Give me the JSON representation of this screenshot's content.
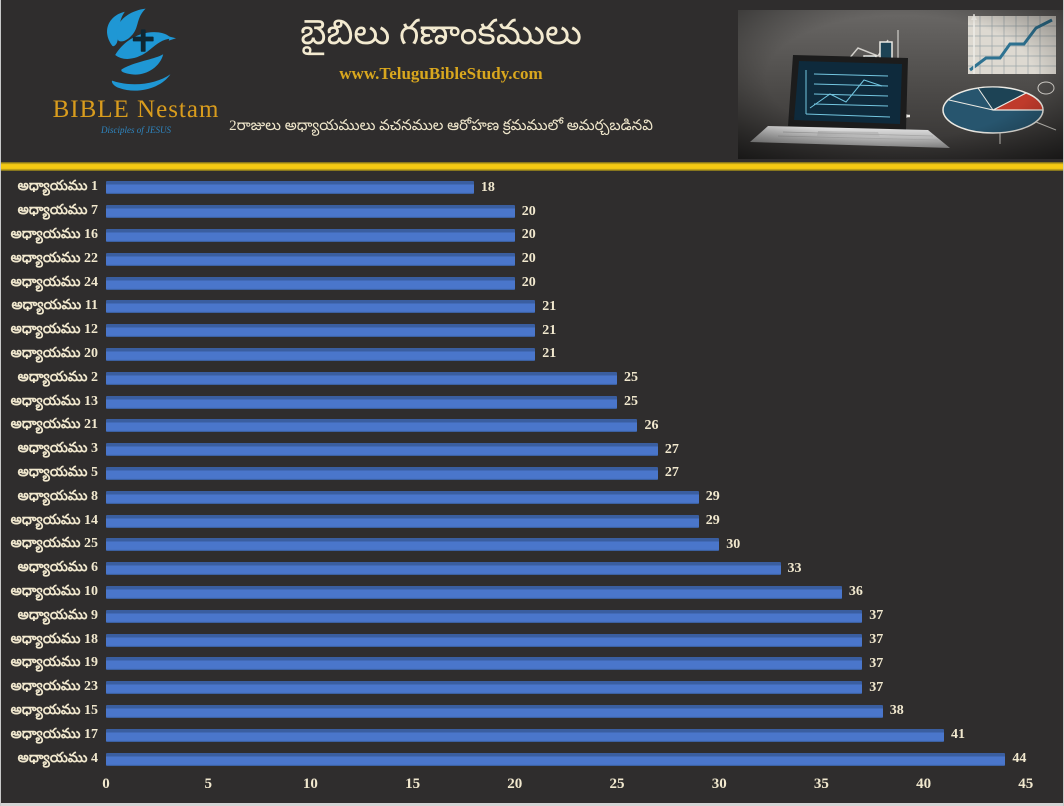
{
  "window": {
    "background": "#2f2d2d",
    "border_color": "#c9c9c9"
  },
  "header": {
    "logo": {
      "name": "BIBLE Nestam",
      "tagline": "Disciples of JESUS",
      "name_color": "#d99c1d",
      "dove_color": "#1f97d4"
    },
    "title": "బైబిలు గణాంకములు",
    "website": "www.TeluguBibleStudy.com",
    "subtitle": "2రాజులు అధ్యాయములు వచనముల ఆరోహణ క్రమములో అమర్చబడినవి",
    "divider_color": "#f4c913"
  },
  "chart_data": {
    "type": "bar",
    "orientation": "horizontal",
    "title": "",
    "xlabel": "",
    "ylabel": "",
    "categories": [
      "అధ్యాయము 1",
      "అధ్యాయము 7",
      "అధ్యాయము 16",
      "అధ్యాయము 22",
      "అధ్యాయము 24",
      "అధ్యాయము 11",
      "అధ్యాయము 12",
      "అధ్యాయము 20",
      "అధ్యాయము 2",
      "అధ్యాయము 13",
      "అధ్యాయము 21",
      "అధ్యాయము 3",
      "అధ్యాయము 5",
      "అధ్యాయము 8",
      "అధ్యాయము 14",
      "అధ్యాయము 25",
      "అధ్యాయము 6",
      "అధ్యాయము 10",
      "అధ్యాయము 9",
      "అధ్యాయము 18",
      "అధ్యాయము 19",
      "అధ్యాయము 23",
      "అధ్యాయము 15",
      "అధ్యాయము 17",
      "అధ్యాయము 4"
    ],
    "values": [
      18,
      20,
      20,
      20,
      20,
      21,
      21,
      21,
      25,
      25,
      26,
      27,
      27,
      29,
      29,
      30,
      33,
      36,
      37,
      37,
      37,
      37,
      38,
      41,
      44
    ],
    "xlim": [
      0,
      45
    ],
    "x_ticks": [
      0,
      5,
      10,
      15,
      20,
      25,
      30,
      35,
      40,
      45
    ],
    "grid": false,
    "legend": "none",
    "bar_color": "#4a76cb",
    "bar_edge_color": "#36578f",
    "text_color": "#f1e8ce"
  }
}
